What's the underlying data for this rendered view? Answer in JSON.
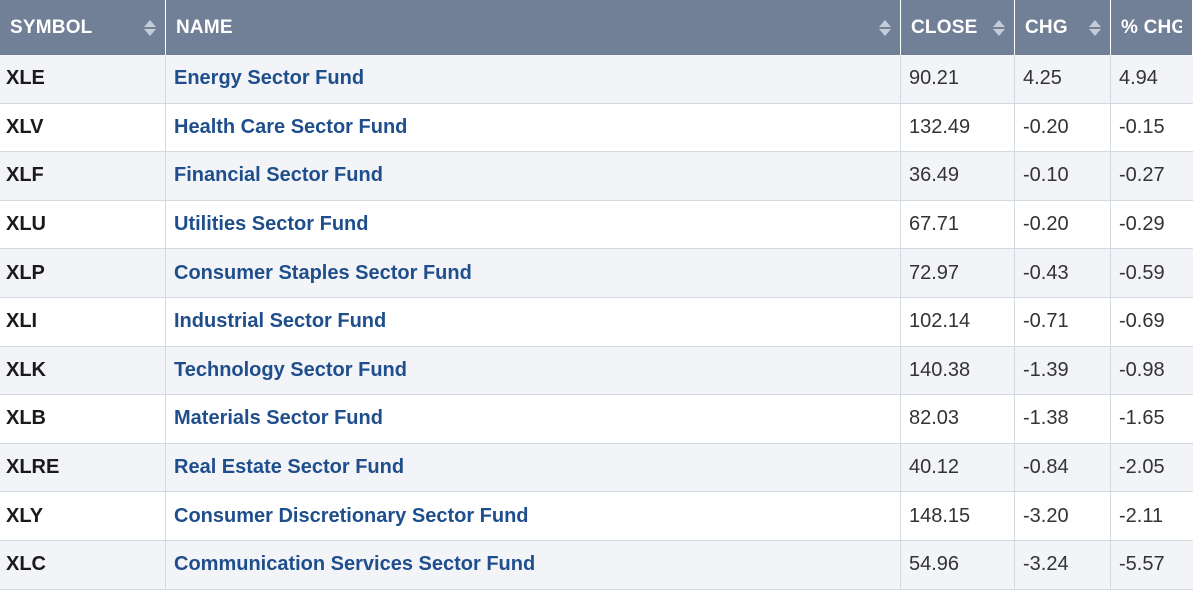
{
  "table": {
    "columns": [
      {
        "key": "symbol",
        "label": "SYMBOL"
      },
      {
        "key": "name",
        "label": "NAME"
      },
      {
        "key": "close",
        "label": "CLOSE"
      },
      {
        "key": "chg",
        "label": "CHG"
      },
      {
        "key": "pct_chg",
        "label": "% CHG"
      }
    ],
    "rows": [
      {
        "symbol": "XLE",
        "name": "Energy Sector Fund",
        "close": "90.21",
        "chg": "4.25",
        "pct_chg": "4.94"
      },
      {
        "symbol": "XLV",
        "name": "Health Care Sector Fund",
        "close": "132.49",
        "chg": "-0.20",
        "pct_chg": "-0.15"
      },
      {
        "symbol": "XLF",
        "name": "Financial Sector Fund",
        "close": "36.49",
        "chg": "-0.10",
        "pct_chg": "-0.27"
      },
      {
        "symbol": "XLU",
        "name": "Utilities Sector Fund",
        "close": "67.71",
        "chg": "-0.20",
        "pct_chg": "-0.29"
      },
      {
        "symbol": "XLP",
        "name": "Consumer Staples Sector Fund",
        "close": "72.97",
        "chg": "-0.43",
        "pct_chg": "-0.59"
      },
      {
        "symbol": "XLI",
        "name": "Industrial Sector Fund",
        "close": "102.14",
        "chg": "-0.71",
        "pct_chg": "-0.69"
      },
      {
        "symbol": "XLK",
        "name": "Technology Sector Fund",
        "close": "140.38",
        "chg": "-1.39",
        "pct_chg": "-0.98"
      },
      {
        "symbol": "XLB",
        "name": "Materials Sector Fund",
        "close": "82.03",
        "chg": "-1.38",
        "pct_chg": "-1.65"
      },
      {
        "symbol": "XLRE",
        "name": "Real Estate Sector Fund",
        "close": "40.12",
        "chg": "-0.84",
        "pct_chg": "-2.05"
      },
      {
        "symbol": "XLY",
        "name": "Consumer Discretionary Sector Fund",
        "close": "148.15",
        "chg": "-3.20",
        "pct_chg": "-2.11"
      },
      {
        "symbol": "XLC",
        "name": "Communication Services Sector Fund",
        "close": "54.96",
        "chg": "-3.24",
        "pct_chg": "-5.57"
      }
    ]
  },
  "icons": {
    "sort": "sort-arrows-icon"
  },
  "colors": {
    "header_bg": "#718096",
    "name_link": "#1f4e8c",
    "row_alt": "#f2f4f7"
  }
}
